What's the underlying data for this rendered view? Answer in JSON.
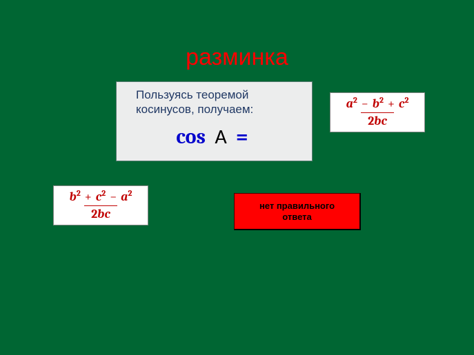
{
  "title": "разминка",
  "question": {
    "line1": "Пользуясь теоремой",
    "line2": "косинусов, получаем:",
    "cos_label": "cos",
    "cos_var": "A",
    "equals": "="
  },
  "options": {
    "o1": {
      "num_parts": [
        "a",
        "2",
        "−",
        "b",
        "2",
        "+",
        "c",
        "2"
      ],
      "den_parts": [
        "2",
        "b",
        "c"
      ]
    },
    "o2": {
      "num_parts": [
        "b",
        "2",
        "+",
        "c",
        "2",
        "−",
        "a",
        "2"
      ],
      "den_parts": [
        "2",
        "b",
        "c"
      ]
    }
  },
  "no_answer": {
    "line1": "нет правильного",
    "line2": "ответа"
  },
  "colors": {
    "background": "#006633",
    "title": "#ff0000",
    "question_bg": "#eceded",
    "question_text": "#203864",
    "cos_color": "#0000cc",
    "formula_color": "#c00000",
    "no_answer_bg": "#ff0000"
  }
}
